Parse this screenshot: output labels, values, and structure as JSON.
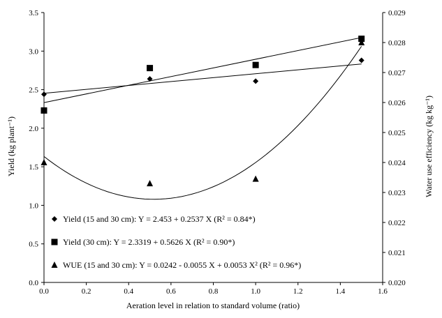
{
  "chart_data": {
    "type": "scatter",
    "xlabel": "Aeration level  in relation  to standard volume (ratio)",
    "ylabel": "Yield  (kg plant⁻¹)",
    "y2label": "Water use efficiency  (kg kg⁻¹)",
    "xlim": [
      0,
      1.6
    ],
    "ylim": [
      0,
      3.5
    ],
    "y2lim": [
      0.02,
      0.029
    ],
    "x_ticks": [
      "0.0",
      "0.2",
      "0.4",
      "0.6",
      "0.8",
      "1.0",
      "1.2",
      "1.4",
      "1.6"
    ],
    "y_ticks": [
      "0.0",
      "0.5",
      "1.0",
      "1.5",
      "2.0",
      "2.5",
      "3.0",
      "3.5"
    ],
    "y2_ticks": [
      "0.020",
      "0.021",
      "0.022",
      "0.023",
      "0.024",
      "0.025",
      "0.026",
      "0.027",
      "0.028",
      "0.029"
    ],
    "series": [
      {
        "legend": "Yield (15 and 30 cm): Y = 2.453 + 0.2537 X  (R² = 0.84*)",
        "marker": "diamond",
        "axis": "left",
        "x": [
          0,
          0.5,
          1.0,
          1.5
        ],
        "y": [
          2.44,
          2.64,
          2.61,
          2.88
        ],
        "fit": {
          "kind": "linear",
          "a": 2.453,
          "b": 0.2537
        }
      },
      {
        "legend": "Yield (30 cm): Y = 2.3319 + 0.5626 X  (R² = 0.90*)",
        "marker": "square",
        "axis": "left",
        "x": [
          0,
          0.5,
          1.0,
          1.5
        ],
        "y": [
          2.23,
          2.78,
          2.82,
          3.16
        ],
        "fit": {
          "kind": "linear",
          "a": 2.3319,
          "b": 0.5626
        }
      },
      {
        "legend": "WUE (15 and 30 cm): Y = 0.0242 - 0.0055 X + 0.0053 X²  (R² = 0.96*)",
        "marker": "triangle",
        "axis": "right",
        "x": [
          0,
          0.5,
          1.0,
          1.5
        ],
        "y": [
          0.024,
          0.0233,
          0.02345,
          0.028
        ],
        "fit": {
          "kind": "quadratic",
          "a": 0.0242,
          "b": -0.0055,
          "c": 0.0053
        }
      }
    ],
    "legend_position": "lower-left",
    "grid": false
  }
}
